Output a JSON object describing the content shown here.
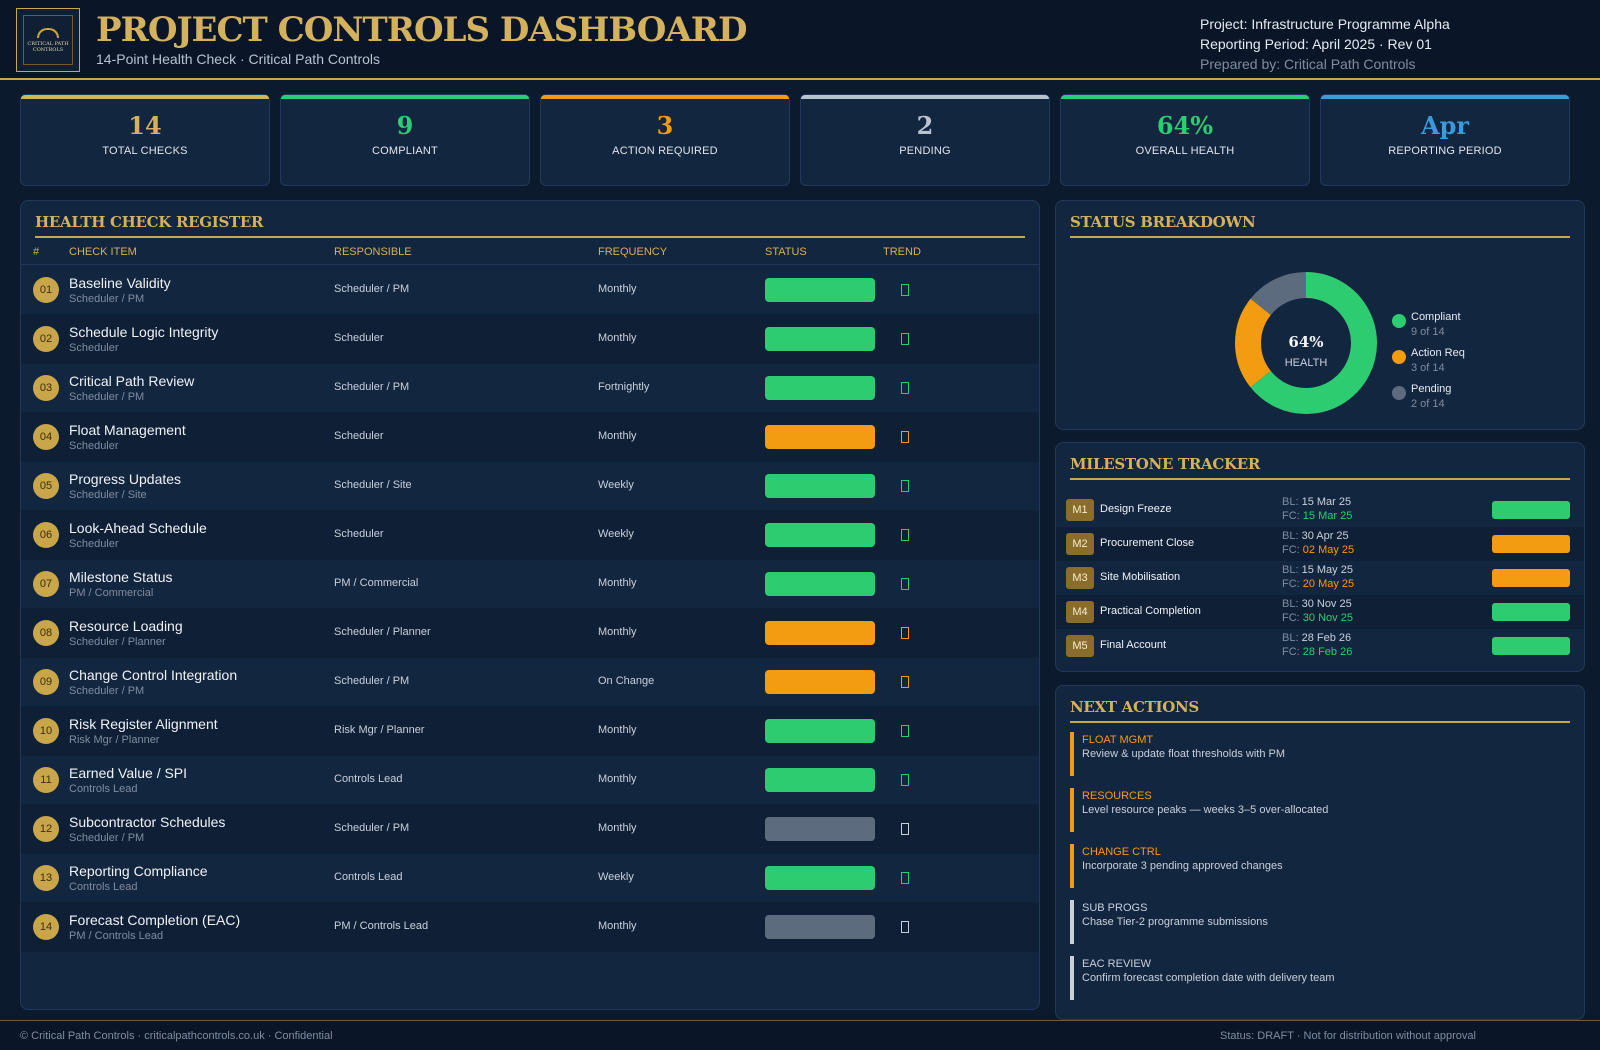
{
  "colors": {
    "gold": "#d4b15c",
    "green": "#2ecc71",
    "orange": "#f39c12",
    "grey": "#5d6b7e",
    "silver": "#b8c2d0",
    "blue": "#3a9bdc",
    "background": "#0c1a2e",
    "panel": "#13263f"
  },
  "header": {
    "logo_text": "CRITICAL PATH CONTROLS",
    "title": "PROJECT CONTROLS DASHBOARD",
    "subtitle": "14-Point Health Check · Critical Path Controls",
    "project": "Project:  Infrastructure Programme Alpha",
    "period": "Reporting Period:  April 2025 · Rev 01",
    "prepared": "Prepared by:  Critical Path Controls"
  },
  "kpis": [
    {
      "value": "14",
      "label": "TOTAL CHECKS",
      "color": "#d4b15c"
    },
    {
      "value": "9",
      "label": "COMPLIANT",
      "color": "#2ecc71"
    },
    {
      "value": "3",
      "label": "ACTION REQUIRED",
      "color": "#f39c12"
    },
    {
      "value": "2",
      "label": "PENDING",
      "color": "#b8c2d0"
    },
    {
      "value": "64%",
      "label": "OVERALL HEALTH",
      "color": "#2ecc71"
    },
    {
      "value": "Apr",
      "label": "REPORTING PERIOD",
      "color": "#3a9bdc"
    }
  ],
  "register": {
    "title": "HEALTH CHECK REGISTER",
    "columns": [
      "#",
      "CHECK ITEM",
      "RESPONSIBLE",
      "FREQUENCY",
      "STATUS",
      "TREND"
    ],
    "rows": [
      {
        "num": "01",
        "item": "Baseline Validity",
        "sub": "Scheduler / PM",
        "responsible": "Scheduler / PM",
        "frequency": "Monthly",
        "status": "compliant"
      },
      {
        "num": "02",
        "item": "Schedule Logic Integrity",
        "sub": "Scheduler",
        "responsible": "Scheduler",
        "frequency": "Monthly",
        "status": "compliant"
      },
      {
        "num": "03",
        "item": "Critical Path Review",
        "sub": "Scheduler / PM",
        "responsible": "Scheduler / PM",
        "frequency": "Fortnightly",
        "status": "compliant"
      },
      {
        "num": "04",
        "item": "Float Management",
        "sub": "Scheduler",
        "responsible": "Scheduler",
        "frequency": "Monthly",
        "status": "action"
      },
      {
        "num": "05",
        "item": "Progress Updates",
        "sub": "Scheduler / Site",
        "responsible": "Scheduler / Site",
        "frequency": "Weekly",
        "status": "compliant"
      },
      {
        "num": "06",
        "item": "Look-Ahead Schedule",
        "sub": "Scheduler",
        "responsible": "Scheduler",
        "frequency": "Weekly",
        "status": "compliant"
      },
      {
        "num": "07",
        "item": "Milestone Status",
        "sub": "PM / Commercial",
        "responsible": "PM / Commercial",
        "frequency": "Monthly",
        "status": "compliant"
      },
      {
        "num": "08",
        "item": "Resource Loading",
        "sub": "Scheduler / Planner",
        "responsible": "Scheduler / Planner",
        "frequency": "Monthly",
        "status": "action"
      },
      {
        "num": "09",
        "item": "Change Control Integration",
        "sub": "Scheduler / PM",
        "responsible": "Scheduler / PM",
        "frequency": "On Change",
        "status": "action"
      },
      {
        "num": "10",
        "item": "Risk Register Alignment",
        "sub": "Risk Mgr / Planner",
        "responsible": "Risk Mgr / Planner",
        "frequency": "Monthly",
        "status": "compliant"
      },
      {
        "num": "11",
        "item": "Earned Value / SPI",
        "sub": "Controls Lead",
        "responsible": "Controls Lead",
        "frequency": "Monthly",
        "status": "compliant"
      },
      {
        "num": "12",
        "item": "Subcontractor Schedules",
        "sub": "Scheduler / PM",
        "responsible": "Scheduler / PM",
        "frequency": "Monthly",
        "status": "pending"
      },
      {
        "num": "13",
        "item": "Reporting Compliance",
        "sub": "Controls Lead",
        "responsible": "Controls Lead",
        "frequency": "Weekly",
        "status": "compliant"
      },
      {
        "num": "14",
        "item": "Forecast Completion (EAC)",
        "sub": "PM / Controls Lead",
        "responsible": "PM / Controls Lead",
        "frequency": "Monthly",
        "status": "pending"
      }
    ]
  },
  "breakdown": {
    "title": "STATUS BREAKDOWN",
    "center_value": "64%",
    "center_label": "HEALTH",
    "segments": [
      {
        "label": "Compliant",
        "sub": "9 of 14",
        "value": 9,
        "color": "#2ecc71"
      },
      {
        "label": "Action Req",
        "sub": "3 of 14",
        "value": 3,
        "color": "#f39c12"
      },
      {
        "label": "Pending",
        "sub": "2 of 14",
        "value": 2,
        "color": "#5d6b7e"
      }
    ]
  },
  "milestones": {
    "title": "MILESTONE TRACKER",
    "bl_prefix": "BL:",
    "fc_prefix": "FC:",
    "items": [
      {
        "code": "M1",
        "name": "Design Freeze",
        "bl": "15 Mar 25",
        "fc": "15 Mar 25",
        "status": "compliant"
      },
      {
        "code": "M2",
        "name": "Procurement Close",
        "bl": "30 Apr 25",
        "fc": "02 May 25",
        "status": "action"
      },
      {
        "code": "M3",
        "name": "Site Mobilisation",
        "bl": "15 May 25",
        "fc": "20 May 25",
        "status": "action"
      },
      {
        "code": "M4",
        "name": "Practical Completion",
        "bl": "30 Nov 25",
        "fc": "30 Nov 25",
        "status": "compliant"
      },
      {
        "code": "M5",
        "name": "Final Account",
        "bl": "28 Feb 26",
        "fc": "28 Feb 26",
        "status": "compliant"
      }
    ]
  },
  "actions": {
    "title": "NEXT ACTIONS",
    "items": [
      {
        "category": "FLOAT MGMT",
        "desc": "Review & update float thresholds with PM",
        "status": "action"
      },
      {
        "category": "RESOURCES",
        "desc": "Level resource peaks — weeks 3–5 over-allocated",
        "status": "action"
      },
      {
        "category": "CHANGE CTRL",
        "desc": "Incorporate 3 pending approved changes",
        "status": "action"
      },
      {
        "category": "SUB PROGS",
        "desc": "Chase Tier-2 programme submissions",
        "status": "pending"
      },
      {
        "category": "EAC REVIEW",
        "desc": "Confirm forecast completion date with delivery team",
        "status": "pending"
      }
    ]
  },
  "footer": {
    "left": "© Critical Path Controls · criticalpathcontrols.co.uk · Confidential",
    "right": "Status: DRAFT · Not for distribution without approval"
  }
}
